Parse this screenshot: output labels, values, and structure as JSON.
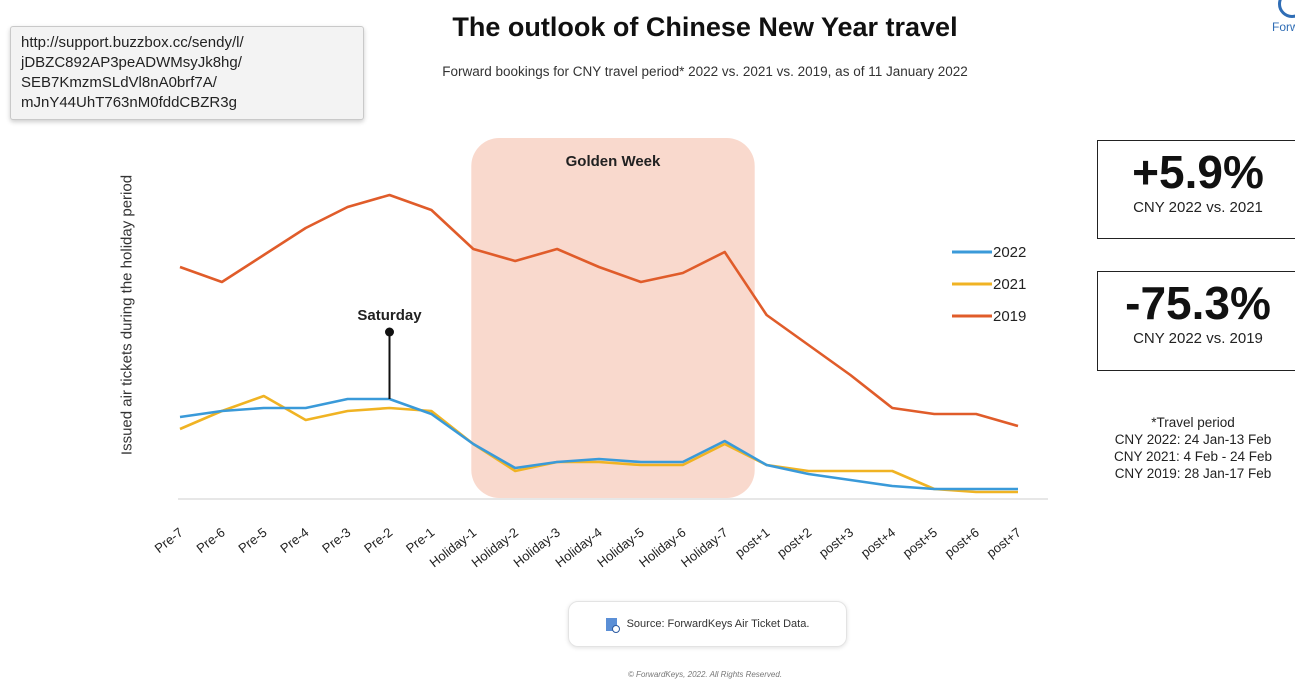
{
  "header": {
    "title": "The outlook of Chinese New Year travel",
    "subtitle": "Forward bookings for CNY travel period* 2022 vs. 2021 vs. 2019, as of 11 January 2022",
    "logo_text": "Forw"
  },
  "stats": [
    {
      "value": "+5.9%",
      "label": "CNY 2022 vs. 2021"
    },
    {
      "value": "-75.3%",
      "label": "CNY 2022 vs. 2019"
    }
  ],
  "notes": {
    "heading": "*Travel period",
    "lines": [
      "CNY 2022: 24 Jan-13 Feb",
      "CNY 2021: 4 Feb - 24 Feb",
      "CNY 2019: 28 Jan-17 Feb"
    ]
  },
  "footer": {
    "source": "Source: ForwardKeys Air Ticket Data.",
    "copyright": "© ForwardKeys, 2022. All Rights Reserved."
  },
  "tooltip": {
    "lines": [
      "http://support.buzzbox.cc/sendy/l/",
      "jDBZC892AP3peADWMsyJk8hg/",
      "SEB7KmzmSLdVl8nA0brf7A/",
      "mJnY44UhT763nM0fddCBZR3g"
    ]
  },
  "colors": {
    "2022": "#3a9ad9",
    "2021": "#f0b323",
    "2019": "#e05c2a",
    "golden_week": "#f9d9cd"
  },
  "chart_data": {
    "type": "line",
    "title": "The outlook of Chinese New Year travel",
    "ylabel": "Issued air tickets during the holiday period",
    "categories": [
      "Pre-7",
      "Pre-6",
      "Pre-5",
      "Pre-4",
      "Pre-3",
      "Pre-2",
      "Pre-1",
      "Holiday-1",
      "Holiday-2",
      "Holiday-3",
      "Holiday-4",
      "Holiday-5",
      "Holiday-6",
      "Holiday-7",
      "post+1",
      "post+2",
      "post+3",
      "post+4",
      "post+5",
      "post+6",
      "post+7"
    ],
    "series": [
      {
        "name": "2022",
        "values": [
          27,
          29,
          30,
          30,
          33,
          33,
          28,
          18,
          10,
          12,
          13,
          12,
          12,
          19,
          11,
          8,
          6,
          4,
          3,
          3,
          3
        ]
      },
      {
        "name": "2021",
        "values": [
          23,
          29,
          34,
          26,
          29,
          30,
          29,
          18,
          9,
          12,
          12,
          11,
          11,
          18,
          11,
          9,
          9,
          9,
          3,
          2,
          2
        ]
      },
      {
        "name": "2019",
        "values": [
          77,
          72,
          81,
          90,
          97,
          101,
          96,
          83,
          79,
          83,
          77,
          72,
          75,
          82,
          61,
          51,
          41,
          30,
          28,
          28,
          24
        ]
      }
    ],
    "ylim": [
      0,
      110
    ],
    "y_ticks": false,
    "legend": "right",
    "highlight": {
      "label": "Golden Week",
      "from": "Holiday-1",
      "to": "Holiday-7"
    },
    "annotations": [
      {
        "label": "Saturday",
        "at": "Pre-2",
        "series": "2022"
      }
    ]
  }
}
